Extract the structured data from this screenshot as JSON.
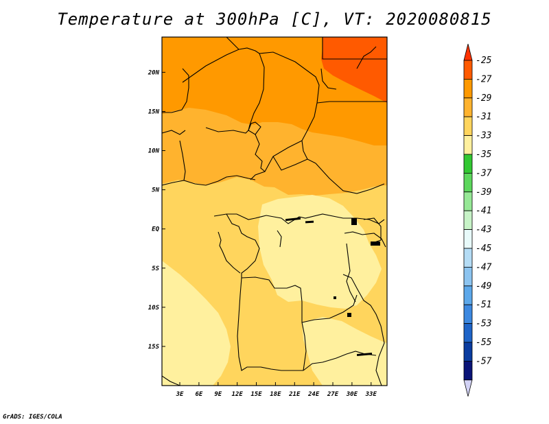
{
  "title": "Temperature at 300hPa [C], VT: 2020080815",
  "credit": "GrADS: IGES/COLA",
  "chart_data": {
    "type": "heatmap",
    "variable": "Temperature at 300hPa",
    "units": "C",
    "valid_time": "2020080815",
    "x_ticks": [
      "3E",
      "6E",
      "9E",
      "12E",
      "15E",
      "18E",
      "21E",
      "24E",
      "27E",
      "30E",
      "33E"
    ],
    "y_ticks": [
      "20N",
      "15N",
      "10N",
      "5N",
      "EQ",
      "5S",
      "10S",
      "15S"
    ],
    "x_tick_values": [
      3,
      6,
      9,
      12,
      15,
      18,
      21,
      24,
      27,
      30,
      33
    ],
    "y_tick_values": [
      20,
      15,
      10,
      5,
      0,
      -5,
      -10,
      -15
    ],
    "lon_range": [
      0.2,
      35.5
    ],
    "lat_range": [
      -20,
      24.5
    ],
    "colorbar": {
      "labels": [
        "-25",
        "-27",
        "-29",
        "-31",
        "-33",
        "-35",
        "-37",
        "-39",
        "-41",
        "-43",
        "-45",
        "-47",
        "-49",
        "-51",
        "-53",
        "-55",
        "-57"
      ],
      "colors": [
        "#ff5a00",
        "#ff9900",
        "#ffb32e",
        "#ffd55d",
        "#fff09e",
        "#32c832",
        "#5cd75c",
        "#96e896",
        "#c7f3c7",
        "#e8fafa",
        "#b4dcf5",
        "#8cc4f0",
        "#5ca8ea",
        "#3c88e0",
        "#1e64c8",
        "#0a3ca0",
        "#0a1478"
      ],
      "top_arrow_color": "#ff3200",
      "bottom_arrow_color": "#d2d2f5"
    },
    "field_colors": {
      "c25": "#ff5a00",
      "c27": "#ff9900",
      "c29": "#ffb32e",
      "c31": "#ffd55d",
      "c33": "#fff09e"
    }
  }
}
